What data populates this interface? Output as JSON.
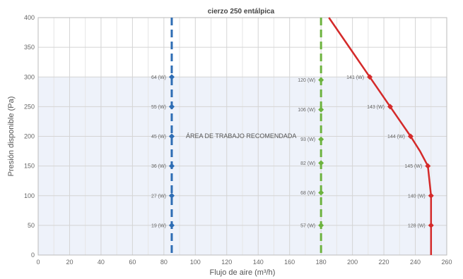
{
  "chart_data": {
    "type": "line",
    "title": "cierzo 250 entálpica",
    "xlabel": "Flujo de aire (m³/h)",
    "ylabel": "Presión disponible (Pa)",
    "xlim": [
      0,
      260
    ],
    "ylim": [
      0,
      400
    ],
    "x_ticks": [
      "0",
      "20",
      "40",
      "60",
      "80",
      "100",
      "120",
      "140",
      "160",
      "180",
      "200",
      "220",
      "240",
      "260"
    ],
    "y_ticks": [
      "0",
      "50",
      "100",
      "150",
      "200",
      "250",
      "300",
      "350",
      "400"
    ],
    "grid": true,
    "recommended_zone": {
      "label": "ÁREA DE TRABAJO RECOMENDADA",
      "y_range": [
        0,
        300
      ],
      "color": "#eef2fa"
    },
    "series": [
      {
        "color": "#2e6db4",
        "style": "dashed",
        "line_x": 85,
        "points": [
          {
            "x": 85,
            "y": 300,
            "label": "64 (W)"
          },
          {
            "x": 85,
            "y": 250,
            "label": "55 (W)"
          },
          {
            "x": 85,
            "y": 200,
            "label": "45 (W)"
          },
          {
            "x": 85,
            "y": 150,
            "label": "36 (W)"
          },
          {
            "x": 85,
            "y": 100,
            "label": "27 (W)"
          },
          {
            "x": 85,
            "y": 50,
            "label": "19 (W)"
          }
        ]
      },
      {
        "color": "#6db33f",
        "style": "dashed",
        "line_x": 180,
        "points": [
          {
            "x": 180,
            "y": 295,
            "label": "120 (W)"
          },
          {
            "x": 180,
            "y": 245,
            "label": "106 (W)"
          },
          {
            "x": 180,
            "y": 195,
            "label": "93 (W)"
          },
          {
            "x": 180,
            "y": 155,
            "label": "82 (W)"
          },
          {
            "x": 180,
            "y": 105,
            "label": "68 (W)"
          },
          {
            "x": 180,
            "y": 50,
            "label": "57 (W)"
          }
        ]
      },
      {
        "color": "#d42a2a",
        "style": "solid",
        "curve": [
          {
            "x": 185,
            "y": 400
          },
          {
            "x": 211,
            "y": 300
          },
          {
            "x": 224,
            "y": 250
          },
          {
            "x": 237,
            "y": 200
          },
          {
            "x": 243,
            "y": 175
          },
          {
            "x": 248,
            "y": 150
          },
          {
            "x": 250,
            "y": 100
          },
          {
            "x": 250,
            "y": 50
          },
          {
            "x": 250,
            "y": 0
          }
        ],
        "points": [
          {
            "x": 211,
            "y": 300,
            "label": "141 (W)"
          },
          {
            "x": 224,
            "y": 250,
            "label": "143 (W)"
          },
          {
            "x": 237,
            "y": 200,
            "label": "144 (W)"
          },
          {
            "x": 248,
            "y": 150,
            "label": "145 (W)"
          },
          {
            "x": 250,
            "y": 100,
            "label": "140 (W)"
          },
          {
            "x": 250,
            "y": 50,
            "label": "128 (W)"
          }
        ]
      }
    ]
  }
}
